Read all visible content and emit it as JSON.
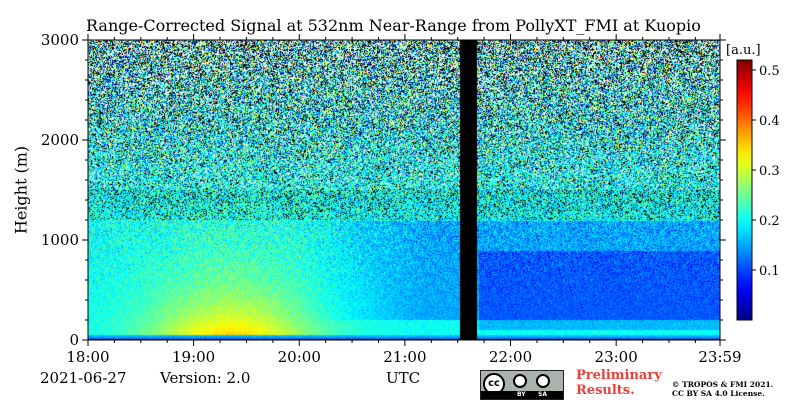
{
  "chart_data": {
    "type": "heatmap",
    "title": "Range-Corrected Signal at 532nm Near-Range from PollyXT_FMI at Kuopio",
    "ylabel": "Height (m)",
    "xlabel": "UTC",
    "x_ticks": [
      "18:00",
      "19:00",
      "20:00",
      "21:00",
      "22:00",
      "23:00",
      "23:59"
    ],
    "x_tick_hours": [
      18,
      19,
      20,
      21,
      22,
      23,
      23.983
    ],
    "xlim_hours": [
      18,
      23.983
    ],
    "y_ticks": [
      "0",
      "1000",
      "2000",
      "3000"
    ],
    "y_tick_values": [
      0,
      1000,
      2000,
      3000
    ],
    "ylim": [
      0,
      3000
    ],
    "colorbar": {
      "unit_label": "[a.u.]",
      "ticks": [
        "0.1",
        "0.2",
        "0.3",
        "0.4",
        "0.5"
      ],
      "tick_values": [
        0.1,
        0.2,
        0.3,
        0.4,
        0.5
      ],
      "range": [
        0,
        0.52
      ],
      "colormap": "jet"
    },
    "data_gap_utc_hours": [
      21.52,
      21.68
    ],
    "features": {
      "enhanced_signal_center_hour": 19.35,
      "enhanced_signal_top_m": 1100,
      "enhanced_signal_peak_value": 0.35,
      "surface_layer_top_m": 60,
      "background_value": 0.2
    }
  },
  "footer": {
    "date": "2021-06-27",
    "version": "Version: 2.0",
    "utc_label": "UTC",
    "preliminary": "Preliminary Results.",
    "copyright_line1": "© TROPOS & FMI 2021.",
    "copyright_line2": "CC BY SA 4.0 License.",
    "cc_by": "BY",
    "cc_sa": "SA",
    "cc_text": "cc"
  }
}
